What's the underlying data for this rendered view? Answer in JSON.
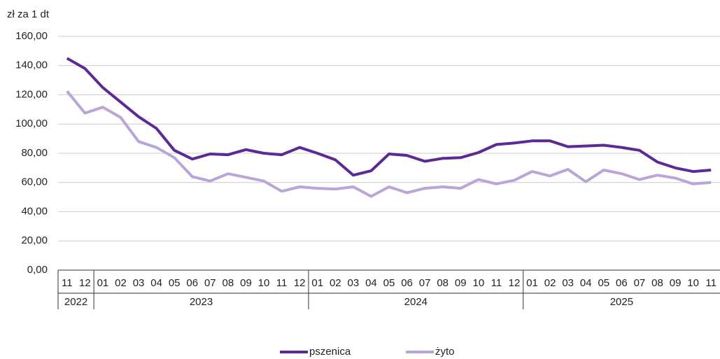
{
  "chart_data": {
    "type": "line",
    "y_label": "zł za 1 dt",
    "category_groups": [
      {
        "label": "2022",
        "categories": [
          "11",
          "12"
        ]
      },
      {
        "label": "2023",
        "categories": [
          "01",
          "02",
          "03",
          "04",
          "05",
          "06",
          "07",
          "08",
          "09",
          "10",
          "11",
          "12"
        ]
      },
      {
        "label": "2024",
        "categories": [
          "01",
          "02",
          "03",
          "04",
          "05",
          "06",
          "07",
          "08",
          "09",
          "10",
          "11",
          "12"
        ]
      },
      {
        "label": "2025",
        "categories": [
          "01",
          "02",
          "03",
          "04",
          "05",
          "06",
          "07",
          "08",
          "09",
          "10",
          "11"
        ]
      }
    ],
    "series": [
      {
        "name": "pszenica",
        "color": "#5b2a96",
        "values": [
          145,
          138,
          125,
          115,
          105,
          97,
          82,
          76,
          79.5,
          79,
          82.5,
          80,
          79,
          84,
          80,
          75.5,
          65,
          68,
          79.5,
          78.5,
          74.5,
          76.5,
          77,
          80.5,
          86,
          87,
          88.5,
          88.5,
          84.5,
          85,
          85.5,
          84,
          82,
          74,
          70,
          67.5,
          68.5
        ]
      },
      {
        "name": "żyto",
        "color": "#b9a6d9",
        "values": [
          122.5,
          107.5,
          111.5,
          104.5,
          88,
          84,
          77,
          64,
          61,
          66,
          63.5,
          61,
          54,
          57,
          56,
          55.5,
          57,
          50.5,
          57,
          53,
          56,
          57,
          56,
          62,
          59,
          61.5,
          67.5,
          64.5,
          69,
          60.5,
          68.5,
          66,
          62,
          65,
          63,
          59,
          60
        ]
      }
    ],
    "ylim": [
      0,
      160
    ],
    "yticks": [
      {
        "value": 0,
        "label": "0,00"
      },
      {
        "value": 20,
        "label": "20,00"
      },
      {
        "value": 40,
        "label": "40,00"
      },
      {
        "value": 60,
        "label": "60,00"
      },
      {
        "value": 80,
        "label": "80,00"
      },
      {
        "value": 100,
        "label": "100,00"
      },
      {
        "value": 120,
        "label": "120,00"
      },
      {
        "value": 140,
        "label": "140,00"
      },
      {
        "value": 160,
        "label": "160,00"
      }
    ],
    "grid": true,
    "legend": "bottom"
  }
}
